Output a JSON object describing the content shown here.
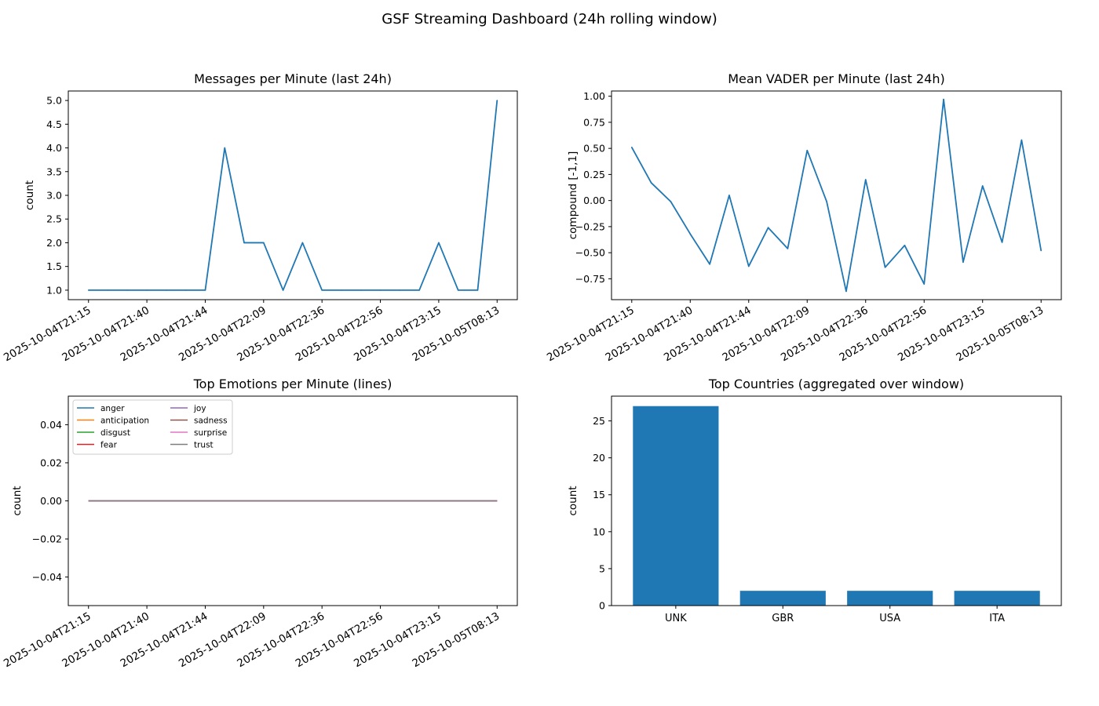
{
  "suptitle": "GSF Streaming Dashboard (24h rolling window)",
  "colors": {
    "line": "#1f77b4",
    "bar": "#1f77b4",
    "emotions": [
      "#1f77b4",
      "#ff7f0e",
      "#2ca02c",
      "#d62728",
      "#9467bd",
      "#8c564b",
      "#e377c2",
      "#7f7f7f"
    ]
  },
  "chart_data": [
    {
      "type": "line",
      "title": "Messages per Minute (last 24h)",
      "xlabel": "",
      "ylabel": "count",
      "ylim": [
        0.8,
        5.2
      ],
      "yticks": [
        "1.0",
        "1.5",
        "2.0",
        "2.5",
        "3.0",
        "3.5",
        "4.0",
        "4.5",
        "5.0"
      ],
      "ytick_values": [
        1.0,
        1.5,
        2.0,
        2.5,
        3.0,
        3.5,
        4.0,
        4.5,
        5.0
      ],
      "xtick_labels": [
        "2025-10-04T21:15",
        "2025-10-04T21:40",
        "2025-10-04T21:44",
        "2025-10-04T22:09",
        "2025-10-04T22:36",
        "2025-10-04T22:56",
        "2025-10-04T23:15",
        "2025-10-05T08:13"
      ],
      "xtick_positions": [
        0,
        3,
        6,
        9,
        12,
        15,
        18,
        21
      ],
      "x_count": 22,
      "values": [
        1,
        1,
        1,
        1,
        1,
        1,
        1,
        4,
        2,
        2,
        1,
        2,
        1,
        1,
        1,
        1,
        1,
        1,
        2,
        1,
        1,
        5
      ]
    },
    {
      "type": "line",
      "title": "Mean VADER per Minute (last 24h)",
      "xlabel": "",
      "ylabel": "compound [-1,1]",
      "ylim": [
        -0.95,
        1.05
      ],
      "yticks": [
        "−0.75",
        "−0.50",
        "−0.25",
        "0.00",
        "0.25",
        "0.50",
        "0.75",
        "1.00"
      ],
      "ytick_values": [
        -0.75,
        -0.5,
        -0.25,
        0,
        0.25,
        0.5,
        0.75,
        1.0
      ],
      "xtick_labels": [
        "2025-10-04T21:15",
        "2025-10-04T21:40",
        "2025-10-04T21:44",
        "2025-10-04T22:09",
        "2025-10-04T22:36",
        "2025-10-04T22:56",
        "2025-10-04T23:15",
        "2025-10-05T08:13"
      ],
      "xtick_positions": [
        0,
        3,
        6,
        9,
        12,
        15,
        18,
        21
      ],
      "x_count": 22,
      "values": [
        0.51,
        0.17,
        -0.01,
        -0.32,
        -0.61,
        0.05,
        -0.63,
        -0.26,
        -0.46,
        0.48,
        -0.01,
        -0.87,
        0.2,
        -0.64,
        -0.43,
        -0.8,
        0.97,
        -0.59,
        0.14,
        -0.4,
        0.58,
        -0.48
      ]
    },
    {
      "type": "line",
      "title": "Top Emotions per Minute (lines)",
      "xlabel": "",
      "ylabel": "count",
      "ylim": [
        -0.055,
        0.055
      ],
      "yticks": [
        "−0.04",
        "−0.02",
        "0.00",
        "0.02",
        "0.04"
      ],
      "ytick_values": [
        -0.04,
        -0.02,
        0,
        0.02,
        0.04
      ],
      "xtick_labels": [
        "2025-10-04T21:15",
        "2025-10-04T21:40",
        "2025-10-04T21:44",
        "2025-10-04T22:09",
        "2025-10-04T22:36",
        "2025-10-04T22:56",
        "2025-10-04T23:15",
        "2025-10-05T08:13"
      ],
      "xtick_positions": [
        0,
        3,
        6,
        9,
        12,
        15,
        18,
        21
      ],
      "x_count": 22,
      "legend": "upper-left",
      "series": [
        {
          "name": "anger",
          "value": 0
        },
        {
          "name": "anticipation",
          "value": 0
        },
        {
          "name": "disgust",
          "value": 0
        },
        {
          "name": "fear",
          "value": 0
        },
        {
          "name": "joy",
          "value": 0
        },
        {
          "name": "sadness",
          "value": 0
        },
        {
          "name": "surprise",
          "value": 0
        },
        {
          "name": "trust",
          "value": 0
        }
      ]
    },
    {
      "type": "bar",
      "title": "Top Countries (aggregated over window)",
      "xlabel": "",
      "ylabel": "count",
      "ylim": [
        0,
        28.35
      ],
      "yticks": [
        "0",
        "5",
        "10",
        "15",
        "20",
        "25"
      ],
      "ytick_values": [
        0,
        5,
        10,
        15,
        20,
        25
      ],
      "categories": [
        "UNK",
        "GBR",
        "USA",
        "ITA"
      ],
      "values": [
        27,
        2,
        2,
        2
      ]
    }
  ]
}
